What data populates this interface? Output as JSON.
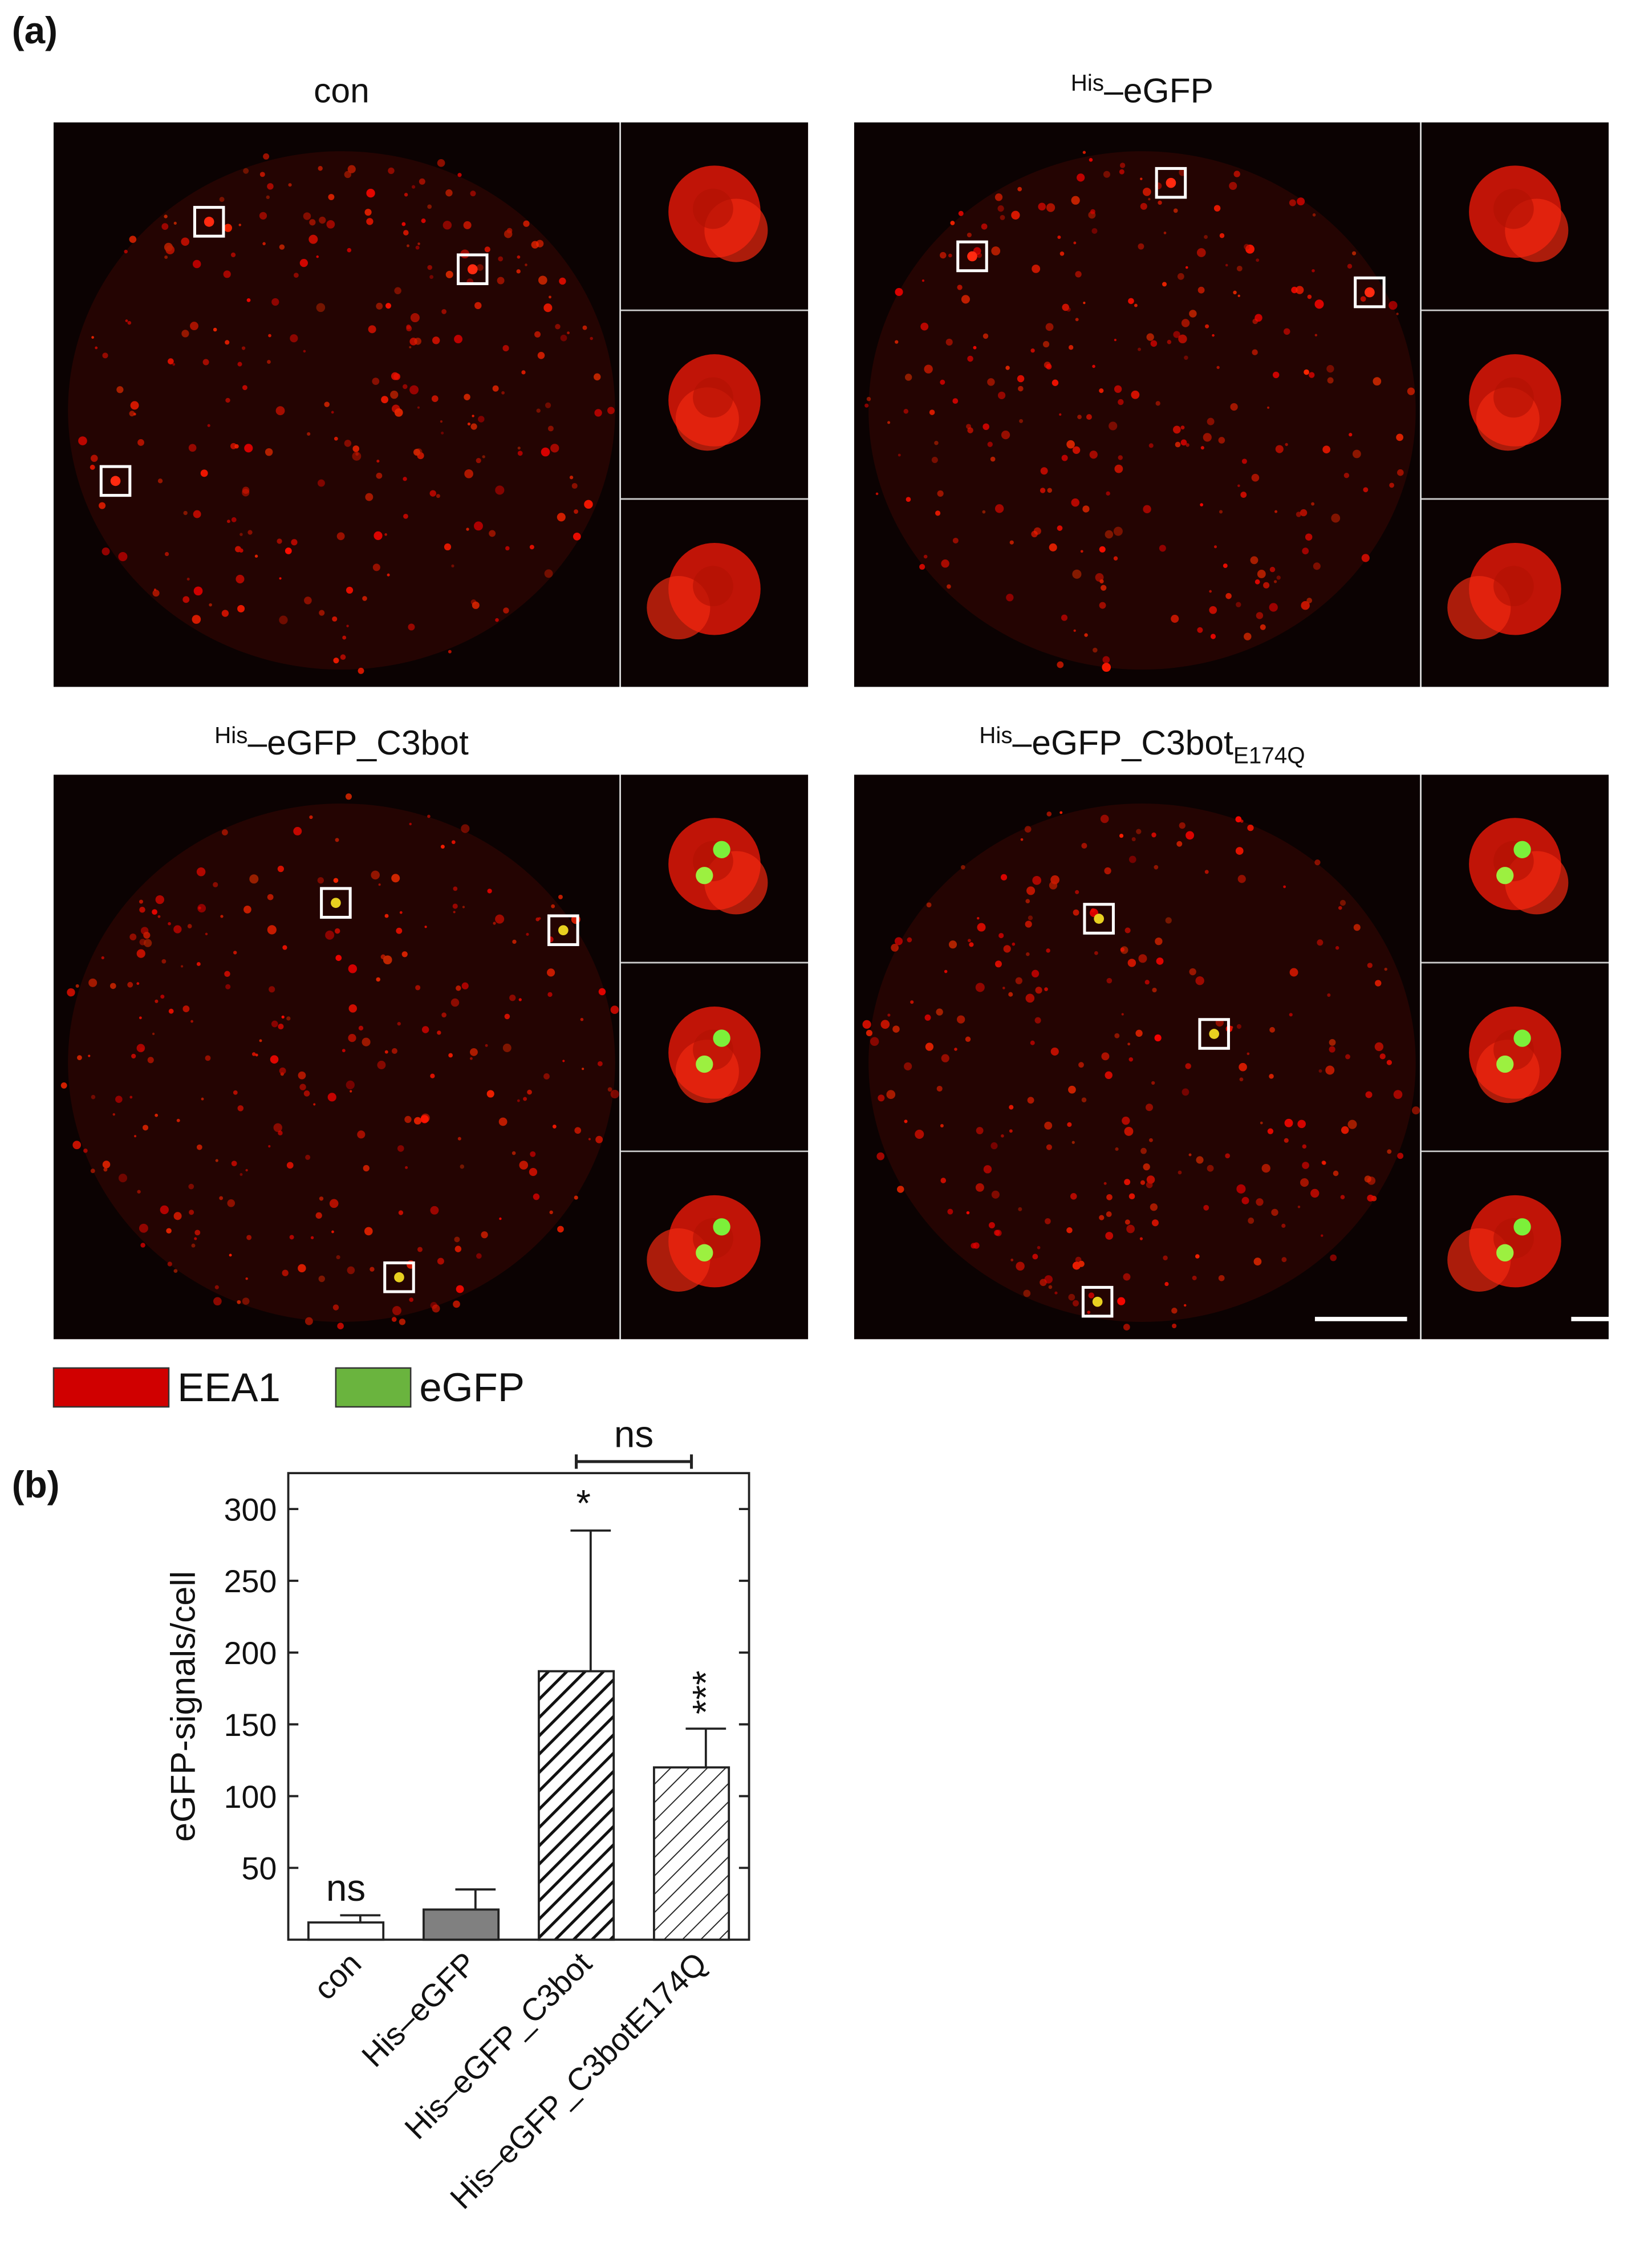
{
  "figure": {
    "panel_a_label": "(a)",
    "panel_b_label": "(b)",
    "panels": [
      {
        "title": {
          "main": "con"
        }
      },
      {
        "title": {
          "sup": "His",
          "main": "–eGFP"
        }
      },
      {
        "title": {
          "sup": "His",
          "main": "–eGFP_C3bot"
        }
      },
      {
        "title": {
          "sup": "His",
          "main": "–eGFP_C3bot",
          "sub": "E174Q"
        }
      }
    ],
    "legend": [
      {
        "name": "EEA1",
        "color": "#d00000"
      },
      {
        "name": "eGFP",
        "color": "#6ab43e"
      }
    ]
  },
  "chart_data": {
    "type": "bar",
    "y_label": "eGFP-signals/cell",
    "categories": [
      "con",
      "His–eGFP",
      "His–eGFP_C3bot",
      "His–eGFP_C3botE174Q"
    ],
    "values": [
      12,
      21,
      187,
      120
    ],
    "errors": [
      5,
      14,
      98,
      27
    ],
    "colors": [
      "#ffffff",
      "#808080",
      "#ffffff",
      "#ffffff"
    ],
    "hatch": [
      null,
      null,
      "dense",
      "sparse"
    ],
    "ylim": [
      0,
      325
    ],
    "yticks": [
      50,
      100,
      150,
      200,
      250,
      300
    ],
    "annotations": [
      {
        "text": "ns",
        "category": 0
      },
      {
        "text": "*",
        "category": 2
      },
      {
        "text": "***",
        "category": 3,
        "rotated": true
      },
      {
        "text": "ns",
        "bracket": [
          2,
          3
        ]
      }
    ]
  }
}
